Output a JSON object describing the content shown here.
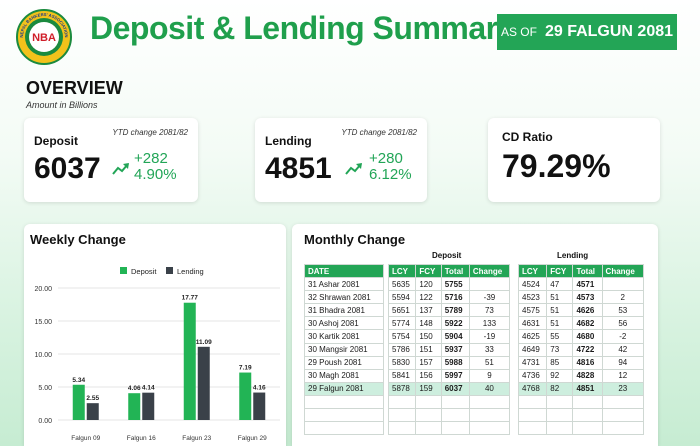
{
  "header": {
    "logo_text": "NEPAL BANKERS' ASSOCIATION",
    "logo_initials": "NBA",
    "title": "Deposit & Lending Summary",
    "as_of_prefix": "AS OF",
    "as_of_date": "29 FALGUN 2081"
  },
  "overview": {
    "title": "OVERVIEW",
    "subtitle": "Amount in Billions"
  },
  "cards": {
    "deposit": {
      "label": "Deposit",
      "ytd_label": "YTD change 2081/82",
      "value": "6037",
      "change_abs": "+282",
      "change_pct": "4.90%"
    },
    "lending": {
      "label": "Lending",
      "ytd_label": "YTD change 2081/82",
      "value": "4851",
      "change_abs": "+280",
      "change_pct": "6.12%"
    },
    "cd_ratio": {
      "label": "CD Ratio",
      "value": "79.29%"
    }
  },
  "weekly": {
    "title": "Weekly Change"
  },
  "colors": {
    "deposit": "#22b455",
    "lending": "#3a4149",
    "accent": "#23a556"
  },
  "chart_data": {
    "type": "bar",
    "title": "Weekly Change",
    "categories": [
      "Falgun 09",
      "Falgun 16",
      "Falgun 23",
      "Falgun 29"
    ],
    "series": [
      {
        "name": "Deposit",
        "values": [
          5.34,
          4.06,
          17.77,
          7.19
        ],
        "labels": [
          "5.34",
          "4.06",
          "17.77",
          "7.19"
        ]
      },
      {
        "name": "Lending",
        "values": [
          2.55,
          4.14,
          11.09,
          4.16
        ],
        "labels": [
          "2.55",
          "4.14",
          "11.09",
          "4.16"
        ]
      }
    ],
    "yticks": [
      "20.00",
      "15.00",
      "10.00",
      "5.00",
      "0.00"
    ],
    "ylim": [
      0,
      20
    ],
    "legend_position": "top"
  },
  "monthly": {
    "title": "Monthly Change",
    "deposit_group": "Deposit",
    "lending_group": "Lending",
    "date_header": "DATE",
    "deposit_headers": [
      "LCY",
      "FCY",
      "Total",
      "Change"
    ],
    "lending_headers": [
      "LCY",
      "FCY",
      "Total",
      "Change"
    ],
    "rows": [
      {
        "date": "31 Ashar 2081",
        "d": [
          "5635",
          "120",
          "5755",
          ""
        ],
        "l": [
          "4524",
          "47",
          "4571",
          ""
        ]
      },
      {
        "date": "32 Shrawan 2081",
        "d": [
          "5594",
          "122",
          "5716",
          "-39"
        ],
        "l": [
          "4523",
          "51",
          "4573",
          "2"
        ]
      },
      {
        "date": "31 Bhadra 2081",
        "d": [
          "5651",
          "137",
          "5789",
          "73"
        ],
        "l": [
          "4575",
          "51",
          "4626",
          "53"
        ]
      },
      {
        "date": "30 Ashoj 2081",
        "d": [
          "5774",
          "148",
          "5922",
          "133"
        ],
        "l": [
          "4631",
          "51",
          "4682",
          "56"
        ]
      },
      {
        "date": "30 Kartik 2081",
        "d": [
          "5754",
          "150",
          "5904",
          "-19"
        ],
        "l": [
          "4625",
          "55",
          "4680",
          "-2"
        ]
      },
      {
        "date": "30 Mangsir 2081",
        "d": [
          "5786",
          "151",
          "5937",
          "33"
        ],
        "l": [
          "4649",
          "73",
          "4722",
          "42"
        ]
      },
      {
        "date": "29 Poush 2081",
        "d": [
          "5830",
          "157",
          "5988",
          "51"
        ],
        "l": [
          "4731",
          "85",
          "4816",
          "94"
        ]
      },
      {
        "date": "30 Magh 2081",
        "d": [
          "5841",
          "156",
          "5997",
          "9"
        ],
        "l": [
          "4736",
          "92",
          "4828",
          "12"
        ]
      },
      {
        "date": "29 Falgun 2081",
        "d": [
          "5878",
          "159",
          "6037",
          "40"
        ],
        "l": [
          "4768",
          "82",
          "4851",
          "23"
        ]
      }
    ]
  }
}
